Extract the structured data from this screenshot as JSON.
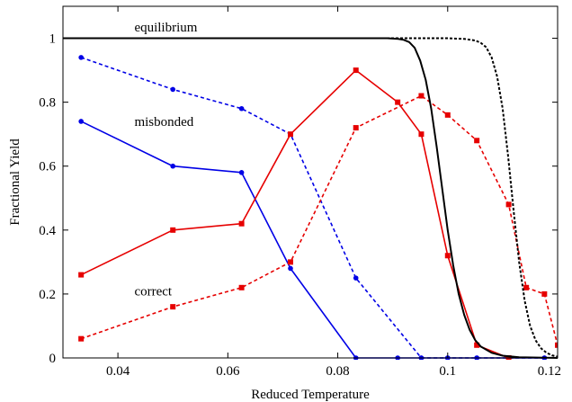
{
  "chart_data": {
    "type": "line",
    "xlabel": "Reduced Temperature",
    "ylabel": "Fractional Yield",
    "xlim": [
      0.03,
      0.12
    ],
    "ylim": [
      0,
      1.1
    ],
    "xticks": [
      0.04,
      0.06,
      0.08,
      0.1,
      0.12
    ],
    "xtick_labels": [
      "0.04",
      "0.06",
      "0.08",
      "0.1",
      "0.12"
    ],
    "yticks": [
      0,
      0.2,
      0.4,
      0.6,
      0.8,
      1
    ],
    "ytick_labels": [
      "0",
      "0.2",
      "0.4",
      "0.6",
      "0.8",
      "1"
    ],
    "grid": false,
    "legend": "none",
    "annotations": [
      {
        "text": "equilibrium",
        "x": 0.043,
        "y": 1.035
      },
      {
        "text": "misbonded",
        "x": 0.043,
        "y": 0.74
      },
      {
        "text": "correct",
        "x": 0.043,
        "y": 0.21
      }
    ],
    "series": [
      {
        "color": "#0000e6",
        "style": "solid",
        "marker": "circle",
        "x": [
          0.0333,
          0.05,
          0.0625,
          0.0714,
          0.0833,
          0.0909,
          0.0952,
          0.1,
          0.1053,
          0.1111,
          0.1176
        ],
        "y": [
          0.74,
          0.6,
          0.58,
          0.28,
          0.0,
          0.0,
          0.0,
          0.0,
          0.0,
          0.0,
          0.0
        ]
      },
      {
        "color": "#0000e6",
        "style": "dashed",
        "marker": "circle",
        "x": [
          0.0333,
          0.05,
          0.0625,
          0.0714,
          0.0833,
          0.0952,
          0.1,
          0.1053,
          0.1111,
          0.1176
        ],
        "y": [
          0.94,
          0.84,
          0.78,
          0.7,
          0.25,
          0.0,
          0.0,
          0.0,
          0.0,
          0.0
        ]
      },
      {
        "color": "#e60000",
        "style": "solid",
        "marker": "square",
        "x": [
          0.0333,
          0.05,
          0.0625,
          0.0714,
          0.0833,
          0.0909,
          0.0952,
          0.1,
          0.1053,
          0.1111
        ],
        "y": [
          0.26,
          0.4,
          0.42,
          0.7,
          0.9,
          0.8,
          0.7,
          0.32,
          0.04,
          0.0
        ]
      },
      {
        "color": "#e60000",
        "style": "dashed",
        "marker": "square",
        "x": [
          0.0333,
          0.05,
          0.0625,
          0.0714,
          0.0833,
          0.0952,
          0.1,
          0.1053,
          0.1111,
          0.1143,
          0.1176,
          0.12
        ],
        "y": [
          0.06,
          0.16,
          0.22,
          0.3,
          0.72,
          0.82,
          0.76,
          0.68,
          0.48,
          0.22,
          0.2,
          0.04
        ]
      },
      {
        "color": "#000000",
        "style": "solid",
        "marker": "none",
        "x": [
          0.03,
          0.08,
          0.089,
          0.091,
          0.092,
          0.093,
          0.094,
          0.095,
          0.096,
          0.097,
          0.098,
          0.099,
          0.1,
          0.101,
          0.102,
          0.103,
          0.104,
          0.105,
          0.106,
          0.108,
          0.11,
          0.113,
          0.12
        ],
        "y": [
          1.0,
          1.0,
          1.0,
          0.998,
          0.995,
          0.988,
          0.97,
          0.93,
          0.87,
          0.78,
          0.66,
          0.53,
          0.4,
          0.29,
          0.2,
          0.135,
          0.088,
          0.056,
          0.036,
          0.016,
          0.007,
          0.002,
          0.0
        ]
      },
      {
        "color": "#000000",
        "style": "dotted",
        "marker": "none",
        "x": [
          0.03,
          0.095,
          0.1,
          0.103,
          0.105,
          0.106,
          0.107,
          0.108,
          0.109,
          0.11,
          0.111,
          0.112,
          0.113,
          0.114,
          0.115,
          0.116,
          0.117,
          0.118,
          0.119,
          0.12
        ],
        "y": [
          1.0,
          1.0,
          1.0,
          0.998,
          0.993,
          0.986,
          0.972,
          0.94,
          0.88,
          0.78,
          0.63,
          0.46,
          0.3,
          0.18,
          0.1,
          0.055,
          0.03,
          0.016,
          0.008,
          0.004
        ]
      }
    ]
  }
}
